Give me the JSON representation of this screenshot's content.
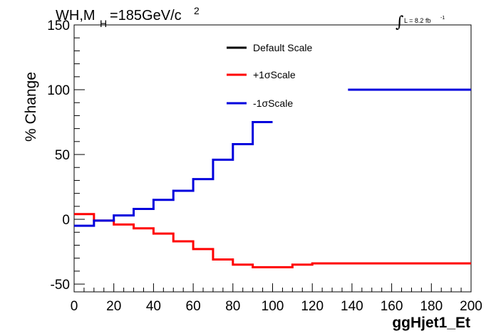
{
  "chart_data": {
    "type": "line",
    "title": {
      "main": "WH,M",
      "sub": "H",
      "rest": "=185GeV/c",
      "sup": "2"
    },
    "lumi": {
      "integral_symbol": "∫",
      "text": "L = 8.2 fb",
      "sup": "-1"
    },
    "xlabel": "ggHjet1_Et",
    "ylabel": "% Change",
    "xlim": [
      0,
      200
    ],
    "ylim": [
      -56,
      150
    ],
    "x_ticks": [
      0,
      20,
      40,
      60,
      80,
      100,
      120,
      140,
      160,
      180,
      200
    ],
    "x_tick_labels": [
      "0",
      "20",
      "40",
      "60",
      "80",
      "100",
      "120",
      "140",
      "160",
      "180",
      "200"
    ],
    "y_ticks": [
      -50,
      0,
      50,
      100,
      150
    ],
    "y_tick_labels": [
      "-50",
      "0",
      "50",
      "100",
      "150"
    ],
    "x_minor_step": 5,
    "y_minor_step": 10,
    "grid": false,
    "legend_position": "top-center",
    "series": [
      {
        "name": "Default Scale",
        "color": "#000000",
        "bin_edges": [],
        "values": []
      },
      {
        "name": "+1σScale",
        "color": "#ff0000",
        "bin_edges": [
          0,
          10,
          20,
          30,
          40,
          50,
          60,
          70,
          80,
          90,
          110,
          120,
          200
        ],
        "values": [
          4,
          -1,
          -4,
          -7,
          -11,
          -17,
          -23,
          -31,
          -35,
          -37,
          -35,
          -34
        ]
      },
      {
        "name": "-1σScale",
        "color": "#0000dd",
        "bin_edges": [
          0,
          10,
          20,
          30,
          40,
          50,
          60,
          70,
          80,
          90,
          100
        ],
        "values": [
          -5,
          -1,
          3,
          8,
          15,
          22,
          31,
          46,
          58,
          75
        ],
        "extra_segments": [
          {
            "x0": 138,
            "x1": 200,
            "value": 100
          }
        ]
      }
    ]
  }
}
